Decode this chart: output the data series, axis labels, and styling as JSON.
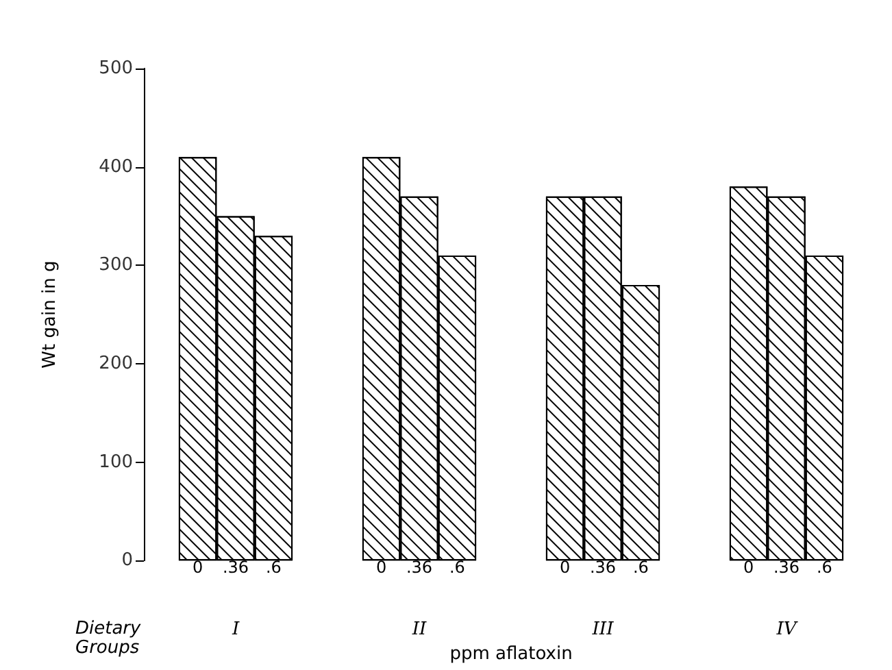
{
  "chart_data": {
    "type": "bar",
    "xlabel": "ppm aflatoxin",
    "ylabel": "Wt gain in g",
    "categories": [
      "I",
      "II",
      "III",
      "IV"
    ],
    "series": [
      {
        "name": "0",
        "color": "#000000",
        "values": [
          410,
          410,
          370,
          380
        ]
      },
      {
        "name": ".36",
        "color": "#000000",
        "values": [
          350,
          370,
          370,
          370
        ]
      },
      {
        "name": ".6",
        "color": "#000000",
        "values": [
          330,
          310,
          280,
          310
        ]
      }
    ],
    "annotations": [
      "Dietary Groups"
    ],
    "ylim": [
      0,
      500
    ],
    "yticks": [
      0,
      100,
      200,
      300,
      400,
      500
    ],
    "grid": false,
    "legend": false
  }
}
